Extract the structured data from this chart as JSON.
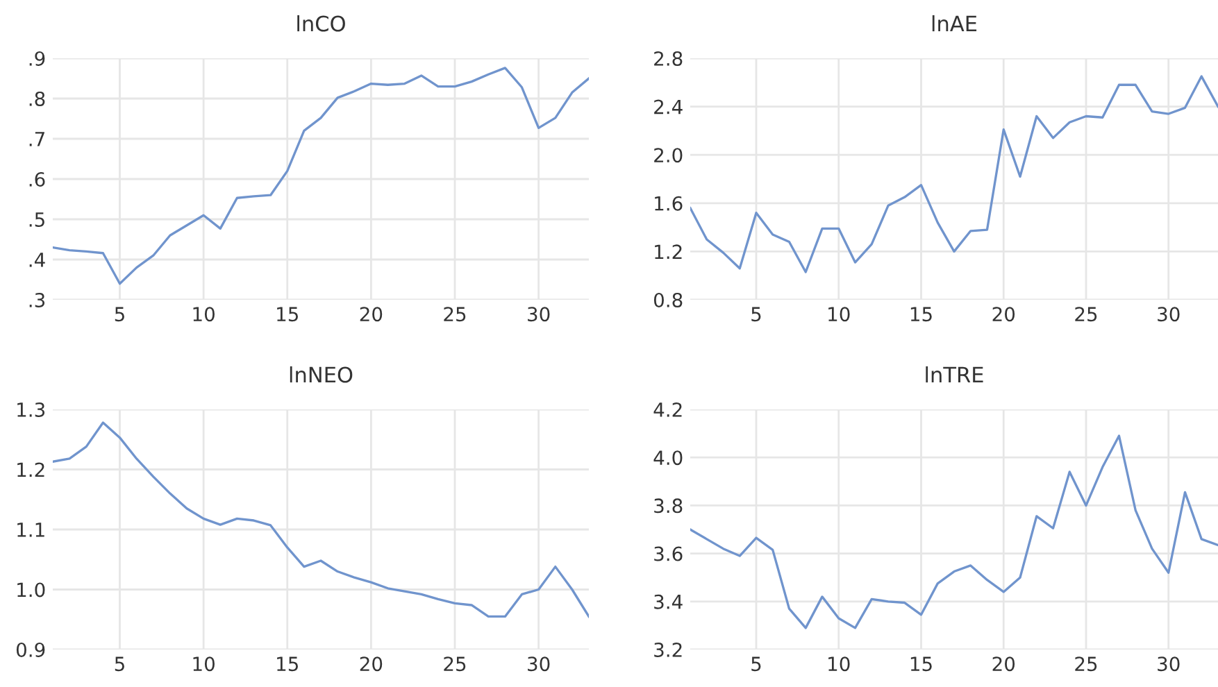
{
  "chart_data": [
    {
      "type": "line",
      "title": "lnCO",
      "x": [
        1,
        2,
        3,
        4,
        5,
        6,
        7,
        8,
        9,
        10,
        11,
        12,
        13,
        14,
        15,
        16,
        17,
        18,
        19,
        20,
        21,
        22,
        23,
        24,
        25,
        26,
        27,
        28,
        29,
        30,
        31,
        32,
        33
      ],
      "series": [
        {
          "color": "#7094cd",
          "values": [
            0.43,
            0.423,
            0.42,
            0.416,
            0.34,
            0.38,
            0.41,
            0.46,
            0.485,
            0.51,
            0.477,
            0.553,
            0.557,
            0.56,
            0.62,
            0.72,
            0.752,
            0.802,
            0.818,
            0.837,
            0.834,
            0.837,
            0.857,
            0.83,
            0.83,
            0.842,
            0.86,
            0.876,
            0.828,
            0.727,
            0.752,
            0.815,
            0.85
          ]
        }
      ],
      "xlim": [
        1,
        33
      ],
      "xticks": [
        5,
        10,
        15,
        20,
        25,
        30
      ],
      "ylim": [
        0.3,
        0.9
      ],
      "yticks": [
        {
          "value": 0.3,
          "label": ".3"
        },
        {
          "value": 0.4,
          "label": ".4"
        },
        {
          "value": 0.5,
          "label": ".5"
        },
        {
          "value": 0.6,
          "label": ".6"
        },
        {
          "value": 0.7,
          "label": ".7"
        },
        {
          "value": 0.8,
          "label": ".8"
        },
        {
          "value": 0.9,
          "label": ".9"
        }
      ],
      "grid": true,
      "legend": false
    },
    {
      "type": "line",
      "title": "lnAE",
      "x": [
        1,
        2,
        3,
        4,
        5,
        6,
        7,
        8,
        9,
        10,
        11,
        12,
        13,
        14,
        15,
        16,
        17,
        18,
        19,
        20,
        21,
        22,
        23,
        24,
        25,
        26,
        27,
        28,
        29,
        30,
        31,
        32,
        33
      ],
      "series": [
        {
          "color": "#7094cd",
          "values": [
            1.56,
            1.3,
            1.19,
            1.06,
            1.52,
            1.34,
            1.28,
            1.03,
            1.39,
            1.39,
            1.11,
            1.26,
            1.58,
            1.65,
            1.75,
            1.44,
            1.2,
            1.37,
            1.38,
            2.21,
            1.82,
            2.32,
            2.14,
            2.27,
            2.32,
            2.31,
            2.58,
            2.58,
            2.36,
            2.34,
            2.39,
            2.65,
            2.4
          ]
        }
      ],
      "xlim": [
        1,
        33
      ],
      "xticks": [
        5,
        10,
        15,
        20,
        25,
        30
      ],
      "ylim": [
        0.8,
        2.8
      ],
      "yticks": [
        {
          "value": 0.8,
          "label": "0.8"
        },
        {
          "value": 1.2,
          "label": "1.2"
        },
        {
          "value": 1.6,
          "label": "1.6"
        },
        {
          "value": 2.0,
          "label": "2.0"
        },
        {
          "value": 2.4,
          "label": "2.4"
        },
        {
          "value": 2.8,
          "label": "2.8"
        }
      ],
      "grid": true,
      "legend": false
    },
    {
      "type": "line",
      "title": "lnNEO",
      "x": [
        1,
        2,
        3,
        4,
        5,
        6,
        7,
        8,
        9,
        10,
        11,
        12,
        13,
        14,
        15,
        16,
        17,
        18,
        19,
        20,
        21,
        22,
        23,
        24,
        25,
        26,
        27,
        28,
        29,
        30,
        31,
        32,
        33
      ],
      "series": [
        {
          "color": "#7094cd",
          "values": [
            1.213,
            1.218,
            1.238,
            1.278,
            1.253,
            1.218,
            1.188,
            1.16,
            1.135,
            1.118,
            1.108,
            1.118,
            1.115,
            1.107,
            1.07,
            1.038,
            1.048,
            1.03,
            1.02,
            1.012,
            1.002,
            0.997,
            0.992,
            0.984,
            0.977,
            0.974,
            0.955,
            0.955,
            0.992,
            1.0,
            1.038,
            1.0,
            0.955
          ]
        }
      ],
      "xlim": [
        1,
        33
      ],
      "xticks": [
        5,
        10,
        15,
        20,
        25,
        30
      ],
      "ylim": [
        0.9,
        1.3
      ],
      "yticks": [
        {
          "value": 0.9,
          "label": "0.9"
        },
        {
          "value": 1.0,
          "label": "1.0"
        },
        {
          "value": 1.1,
          "label": "1.1"
        },
        {
          "value": 1.2,
          "label": "1.2"
        },
        {
          "value": 1.3,
          "label": "1.3"
        }
      ],
      "grid": true,
      "legend": false
    },
    {
      "type": "line",
      "title": "lnTRE",
      "x": [
        1,
        2,
        3,
        4,
        5,
        6,
        7,
        8,
        9,
        10,
        11,
        12,
        13,
        14,
        15,
        16,
        17,
        18,
        19,
        20,
        21,
        22,
        23,
        24,
        25,
        26,
        27,
        28,
        29,
        30,
        31,
        32,
        33
      ],
      "series": [
        {
          "color": "#7094cd",
          "values": [
            3.7,
            3.66,
            3.62,
            3.59,
            3.665,
            3.615,
            3.37,
            3.29,
            3.42,
            3.33,
            3.29,
            3.41,
            3.4,
            3.395,
            3.345,
            3.475,
            3.525,
            3.55,
            3.49,
            3.44,
            3.5,
            3.755,
            3.705,
            3.94,
            3.8,
            3.96,
            4.09,
            3.78,
            3.62,
            3.52,
            3.855,
            3.66,
            3.635
          ]
        }
      ],
      "xlim": [
        1,
        33
      ],
      "xticks": [
        5,
        10,
        15,
        20,
        25,
        30
      ],
      "ylim": [
        3.2,
        4.2
      ],
      "yticks": [
        {
          "value": 3.2,
          "label": "3.2"
        },
        {
          "value": 3.4,
          "label": "3.4"
        },
        {
          "value": 3.6,
          "label": "3.6"
        },
        {
          "value": 3.8,
          "label": "3.8"
        },
        {
          "value": 4.0,
          "label": "4.0"
        },
        {
          "value": 4.2,
          "label": "4.2"
        }
      ],
      "grid": true,
      "legend": false
    }
  ]
}
